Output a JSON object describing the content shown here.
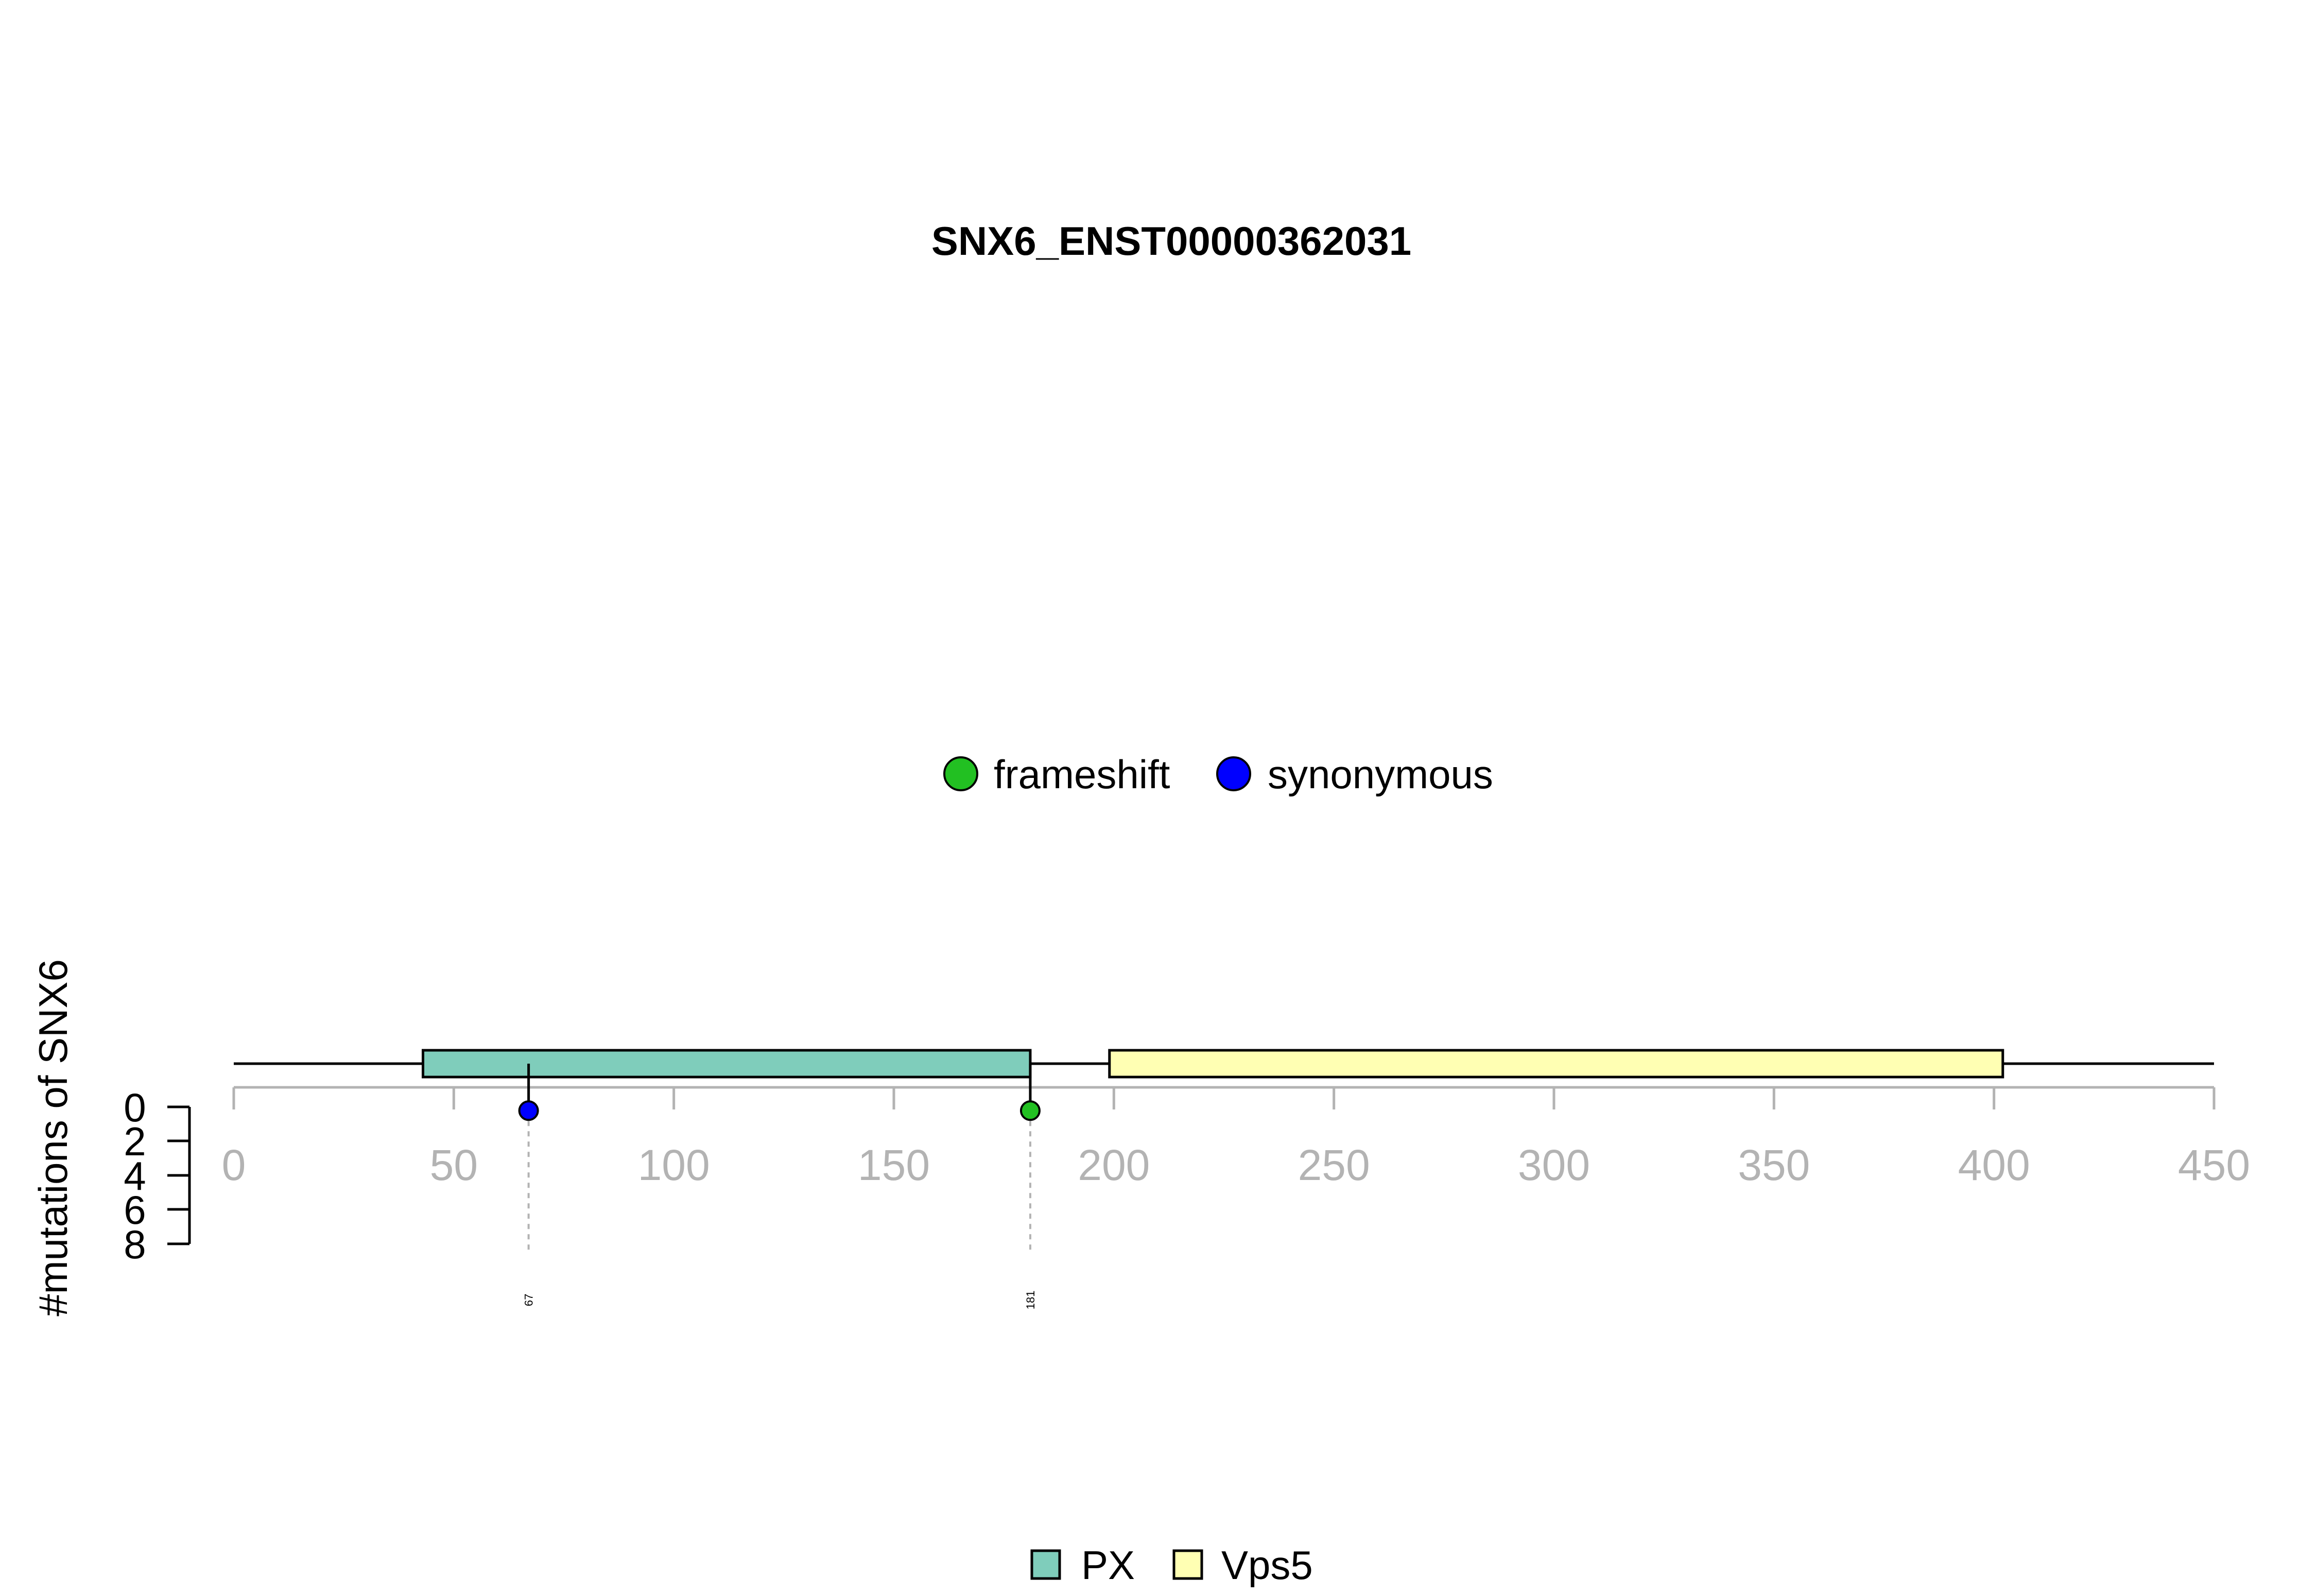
{
  "chart_data": {
    "type": "lollipop",
    "title": "SNX6_ENST00000362031",
    "ylabel": "#mutations of SNX6",
    "xlim": [
      0,
      450
    ],
    "x_ticks": [
      0,
      50,
      100,
      150,
      200,
      250,
      300,
      350,
      400,
      450
    ],
    "y_ticks": [
      0,
      2,
      4,
      6,
      8
    ],
    "protein_length": 450,
    "mutation_legend": [
      {
        "name": "frameshift",
        "color": "#22c022"
      },
      {
        "name": "synonymous",
        "color": "#0000ff"
      }
    ],
    "mutations": [
      {
        "position": 67,
        "label": "67",
        "count": 1,
        "type": "synonymous",
        "color": "#0000ff"
      },
      {
        "position": 181,
        "label": "181",
        "count": 1,
        "type": "frameshift",
        "color": "#22c022"
      }
    ],
    "domains": [
      {
        "name": "PX",
        "start": 43,
        "end": 181,
        "color": "#7fcdbb"
      },
      {
        "name": "Vps5",
        "start": 199,
        "end": 402,
        "color": "#ffffb3"
      }
    ]
  }
}
